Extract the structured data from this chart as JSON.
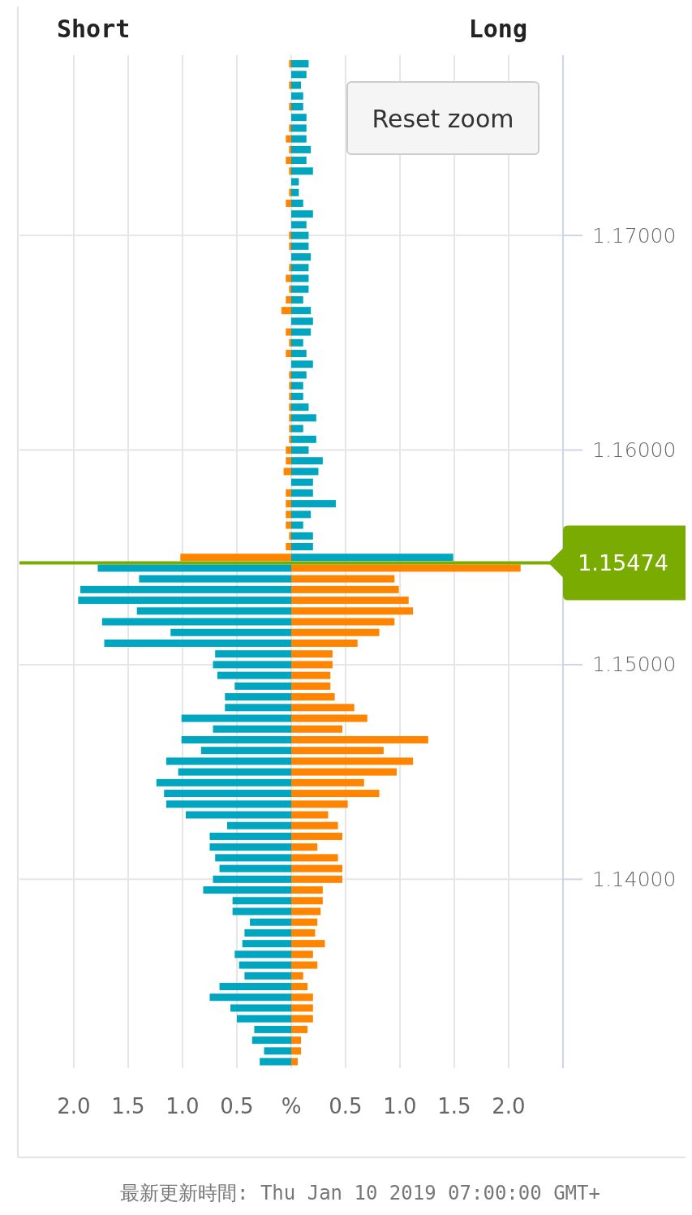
{
  "chart_data": {
    "type": "bar",
    "orientation": "horizontal",
    "stacked": true,
    "grid": true,
    "x": [
      1.178,
      1.1775,
      1.177,
      1.1765,
      1.176,
      1.1755,
      1.175,
      1.1745,
      1.174,
      1.1735,
      1.173,
      1.1725,
      1.172,
      1.1715,
      1.171,
      1.1705,
      1.17,
      1.1695,
      1.169,
      1.1685,
      1.168,
      1.1675,
      1.167,
      1.1665,
      1.166,
      1.1655,
      1.165,
      1.1645,
      1.164,
      1.1635,
      1.163,
      1.1625,
      1.162,
      1.1615,
      1.161,
      1.1605,
      1.16,
      1.1595,
      1.159,
      1.1585,
      1.158,
      1.1575,
      1.157,
      1.1565,
      1.156,
      1.1555,
      1.155,
      1.1545,
      1.154,
      1.1535,
      1.153,
      1.1525,
      1.152,
      1.1515,
      1.151,
      1.1505,
      1.15,
      1.1495,
      1.149,
      1.1485,
      1.148,
      1.1475,
      1.147,
      1.1465,
      1.146,
      1.1455,
      1.145,
      1.1445,
      1.144,
      1.1435,
      1.143,
      1.1425,
      1.142,
      1.1415,
      1.141,
      1.1405,
      1.14,
      1.1395,
      1.139,
      1.1385,
      1.138,
      1.1375,
      1.137,
      1.1365,
      1.136,
      1.1355,
      1.135,
      1.1345,
      1.134,
      1.1335,
      1.133,
      1.1325,
      1.132,
      1.1315
    ],
    "series": [
      {
        "values": [
          -0.02,
          0,
          -0.02,
          0,
          -0.02,
          0,
          -0.02,
          -0.05,
          -0.02,
          -0.05,
          -0.02,
          0,
          -0.02,
          -0.05,
          0,
          0,
          -0.02,
          -0.02,
          0,
          -0.02,
          -0.05,
          -0.02,
          -0.05,
          -0.09,
          0,
          -0.05,
          -0.02,
          -0.05,
          0,
          -0.02,
          -0.02,
          -0.02,
          -0.02,
          -0.02,
          -0.02,
          -0.02,
          -0.05,
          -0.05,
          -0.07,
          0,
          -0.05,
          -0.05,
          -0.05,
          -0.05,
          -0.02,
          -0.05,
          -1.02,
          -1.78,
          -1.4,
          -1.94,
          -1.96,
          -1.42,
          -1.74,
          -1.11,
          -1.72,
          -0.7,
          -0.72,
          -0.68,
          -0.52,
          -0.61,
          -0.61,
          -1.01,
          -0.72,
          -1.01,
          -0.83,
          -1.15,
          -1.04,
          -1.24,
          -1.17,
          -1.15,
          -0.97,
          -0.59,
          -0.75,
          -0.75,
          -0.7,
          -0.66,
          -0.72,
          -0.81,
          -0.54,
          -0.54,
          -0.38,
          -0.43,
          -0.45,
          -0.52,
          -0.48,
          -0.43,
          -0.66,
          -0.75,
          -0.56,
          -0.5,
          -0.34,
          -0.36,
          -0.25,
          -0.29
        ],
        "colors": [
          "#ff8500",
          "#ff8500",
          "#ff8500",
          "#ff8500",
          "#ff8500",
          "#ff8500",
          "#ff8500",
          "#ff8500",
          "#ff8500",
          "#ff8500",
          "#ff8500",
          "#ff8500",
          "#ff8500",
          "#ff8500",
          "#ff8500",
          "#ff8500",
          "#ff8500",
          "#ff8500",
          "#ff8500",
          "#ff8500",
          "#ff8500",
          "#ff8500",
          "#ff8500",
          "#ff8500",
          "#ff8500",
          "#ff8500",
          "#ff8500",
          "#ff8500",
          "#ff8500",
          "#ff8500",
          "#ff8500",
          "#ff8500",
          "#ff8500",
          "#ff8500",
          "#ff8500",
          "#ff8500",
          "#ff8500",
          "#ff8500",
          "#ff8500",
          "#ff8500",
          "#ff8500",
          "#ff8500",
          "#ff8500",
          "#ff8500",
          "#ff8500",
          "#ff8500",
          "#ff8500",
          "#00a5c0",
          "#00a5c0",
          "#00a5c0",
          "#00a5c0",
          "#00a5c0",
          "#00a5c0",
          "#00a5c0",
          "#00a5c0",
          "#00a5c0",
          "#00a5c0",
          "#00a5c0",
          "#00a5c0",
          "#00a5c0",
          "#00a5c0",
          "#00a5c0",
          "#00a5c0",
          "#00a5c0",
          "#00a5c0",
          "#00a5c0",
          "#00a5c0",
          "#00a5c0",
          "#00a5c0",
          "#00a5c0",
          "#00a5c0",
          "#00a5c0",
          "#00a5c0",
          "#00a5c0",
          "#00a5c0",
          "#00a5c0",
          "#00a5c0",
          "#00a5c0",
          "#00a5c0",
          "#00a5c0",
          "#00a5c0",
          "#00a5c0",
          "#00a5c0",
          "#00a5c0",
          "#00a5c0",
          "#00a5c0",
          "#00a5c0",
          "#00a5c0",
          "#00a5c0",
          "#00a5c0",
          "#00a5c0",
          "#00a5c0",
          "#00a5c0",
          "#00a5c0"
        ]
      },
      {
        "values": [
          0.16,
          0.14,
          0.09,
          0.11,
          0.11,
          0.14,
          0.14,
          0.14,
          0.18,
          0.14,
          0.2,
          0.07,
          0.07,
          0.11,
          0.2,
          0.14,
          0.16,
          0.16,
          0.18,
          0.16,
          0.16,
          0.16,
          0.11,
          0.18,
          0.2,
          0.18,
          0.11,
          0.14,
          0.2,
          0.14,
          0.11,
          0.11,
          0.16,
          0.23,
          0.11,
          0.23,
          0.16,
          0.29,
          0.25,
          0.2,
          0.2,
          0.41,
          0.18,
          0.11,
          0.2,
          0.2,
          1.49,
          2.11,
          0.95,
          0.99,
          1.08,
          1.12,
          0.95,
          0.81,
          0.61,
          0.38,
          0.38,
          0.36,
          0.36,
          0.4,
          0.58,
          0.7,
          0.47,
          1.26,
          0.85,
          1.12,
          0.97,
          0.67,
          0.81,
          0.52,
          0.34,
          0.43,
          0.47,
          0.24,
          0.43,
          0.47,
          0.47,
          0.29,
          0.29,
          0.27,
          0.24,
          0.22,
          0.31,
          0.2,
          0.24,
          0.11,
          0.15,
          0.2,
          0.2,
          0.2,
          0.15,
          0.09,
          0.09,
          0.06
        ],
        "colors": [
          "#00a5c0",
          "#00a5c0",
          "#00a5c0",
          "#00a5c0",
          "#00a5c0",
          "#00a5c0",
          "#00a5c0",
          "#00a5c0",
          "#00a5c0",
          "#00a5c0",
          "#00a5c0",
          "#00a5c0",
          "#00a5c0",
          "#00a5c0",
          "#00a5c0",
          "#00a5c0",
          "#00a5c0",
          "#00a5c0",
          "#00a5c0",
          "#00a5c0",
          "#00a5c0",
          "#00a5c0",
          "#00a5c0",
          "#00a5c0",
          "#00a5c0",
          "#00a5c0",
          "#00a5c0",
          "#00a5c0",
          "#00a5c0",
          "#00a5c0",
          "#00a5c0",
          "#00a5c0",
          "#00a5c0",
          "#00a5c0",
          "#00a5c0",
          "#00a5c0",
          "#00a5c0",
          "#00a5c0",
          "#00a5c0",
          "#00a5c0",
          "#00a5c0",
          "#00a5c0",
          "#00a5c0",
          "#00a5c0",
          "#00a5c0",
          "#00a5c0",
          "#00a5c0",
          "#ff8500",
          "#ff8500",
          "#ff8500",
          "#ff8500",
          "#ff8500",
          "#ff8500",
          "#ff8500",
          "#ff8500",
          "#ff8500",
          "#ff8500",
          "#ff8500",
          "#ff8500",
          "#ff8500",
          "#ff8500",
          "#ff8500",
          "#ff8500",
          "#ff8500",
          "#ff8500",
          "#ff8500",
          "#ff8500",
          "#ff8500",
          "#ff8500",
          "#ff8500",
          "#ff8500",
          "#ff8500",
          "#ff8500",
          "#ff8500",
          "#ff8500",
          "#ff8500",
          "#ff8500",
          "#ff8500",
          "#ff8500",
          "#ff8500",
          "#ff8500",
          "#ff8500",
          "#ff8500",
          "#ff8500",
          "#ff8500",
          "#ff8500",
          "#ff8500",
          "#ff8500",
          "#ff8500",
          "#ff8500",
          "#ff8500",
          "#ff8500",
          "#ff8500",
          "#ff8500"
        ]
      }
    ],
    "xlim": [
      -2.5,
      2.5
    ],
    "xticks": [
      {
        "value": -2,
        "label": "2.0"
      },
      {
        "value": -1.5,
        "label": "1.5"
      },
      {
        "value": -1,
        "label": "1.0"
      },
      {
        "value": -0.5,
        "label": "0.5"
      },
      {
        "value": 0,
        "label": "%"
      },
      {
        "value": 0.5,
        "label": "0.5"
      },
      {
        "value": 1,
        "label": "1.0"
      },
      {
        "value": 1.5,
        "label": "1.5"
      },
      {
        "value": 2,
        "label": "2.0"
      }
    ],
    "ylim": [
      1.1312,
      1.1784
    ],
    "yticks": [
      {
        "value": 1.14,
        "label": "1.14000"
      },
      {
        "value": 1.15,
        "label": "1.15000"
      },
      {
        "value": 1.16,
        "label": "1.16000"
      },
      {
        "value": 1.17,
        "label": "1.17000"
      }
    ],
    "ref_lines": [
      {
        "axis": "y",
        "value": 1.15474,
        "label": "1.15474",
        "color": "#7aab00"
      }
    ],
    "annotations": [
      "Short",
      "Long",
      "Reset zoom",
      "最新更新時間: Thu Jan 10 2019 07:00:00 GMT+"
    ]
  }
}
